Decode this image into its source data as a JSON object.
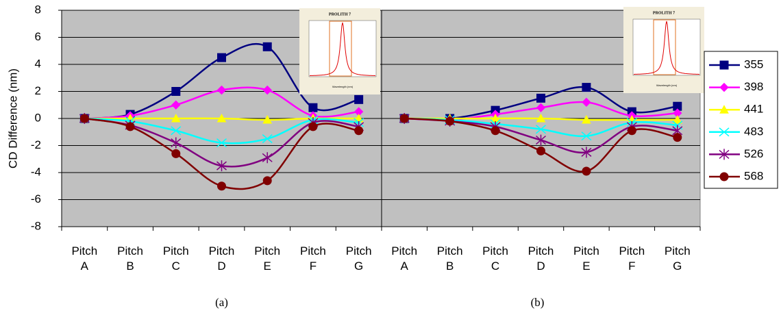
{
  "chart_data": [
    {
      "type": "line",
      "caption": "(a)",
      "y_label": "CD Difference (nm)",
      "inset_title": "PROLITH 7",
      "inset_xlabel": "Wavelength (nm)",
      "categories": [
        "Pitch A",
        "Pitch B",
        "Pitch C",
        "Pitch D",
        "Pitch E",
        "Pitch F",
        "Pitch G"
      ],
      "ylim": [
        -8,
        8
      ],
      "yticks": [
        -8,
        -6,
        -4,
        -2,
        0,
        2,
        4,
        6,
        8
      ],
      "grid": true,
      "legend": "right",
      "series": [
        {
          "name": "355",
          "color": "#000080",
          "marker": "square",
          "values": [
            0,
            0.3,
            2.0,
            4.5,
            5.3,
            0.8,
            1.4
          ]
        },
        {
          "name": "398",
          "color": "#ff00ff",
          "marker": "diamond",
          "values": [
            0,
            0.2,
            1.0,
            2.1,
            2.1,
            0.2,
            0.5
          ]
        },
        {
          "name": "441",
          "color": "#ffff00",
          "marker": "triangle",
          "values": [
            0,
            0,
            0,
            0,
            -0.1,
            0,
            0
          ]
        },
        {
          "name": "483",
          "color": "#00ffff",
          "marker": "x",
          "values": [
            0,
            -0.2,
            -0.9,
            -1.8,
            -1.5,
            -0.1,
            -0.3
          ]
        },
        {
          "name": "526",
          "color": "#800080",
          "marker": "star",
          "values": [
            0,
            -0.5,
            -1.8,
            -3.5,
            -2.9,
            -0.3,
            -0.6
          ]
        },
        {
          "name": "568",
          "color": "#800000",
          "marker": "circle",
          "values": [
            0,
            -0.6,
            -2.6,
            -5.0,
            -4.6,
            -0.6,
            -0.9
          ]
        }
      ]
    },
    {
      "type": "line",
      "caption": "(b)",
      "inset_title": "PROLITH 7",
      "inset_xlabel": "Wavelength (nm)",
      "categories": [
        "Pitch A",
        "Pitch B",
        "Pitch C",
        "Pitch D",
        "Pitch E",
        "Pitch F",
        "Pitch G"
      ],
      "ylim": [
        -8,
        8
      ],
      "yticks": [
        -8,
        -6,
        -4,
        -2,
        0,
        2,
        4,
        6,
        8
      ],
      "grid": true,
      "series": [
        {
          "color": "#000080",
          "marker": "square",
          "values": [
            0,
            0,
            0.6,
            1.5,
            2.3,
            0.5,
            0.9
          ]
        },
        {
          "color": "#ff00ff",
          "marker": "diamond",
          "values": [
            0,
            -0.1,
            0.3,
            0.8,
            1.2,
            0.2,
            0.4
          ]
        },
        {
          "color": "#ffff00",
          "marker": "triangle",
          "values": [
            0,
            0,
            0,
            0,
            -0.1,
            -0.1,
            -0.1
          ]
        },
        {
          "color": "#00ffff",
          "marker": "x",
          "values": [
            0,
            -0.1,
            -0.4,
            -0.8,
            -1.3,
            -0.3,
            -0.5
          ]
        },
        {
          "color": "#800080",
          "marker": "star",
          "values": [
            0,
            -0.2,
            -0.6,
            -1.6,
            -2.5,
            -0.6,
            -0.9
          ]
        },
        {
          "color": "#800000",
          "marker": "circle",
          "values": [
            0,
            -0.2,
            -0.9,
            -2.4,
            -3.9,
            -0.9,
            -1.4
          ]
        }
      ]
    }
  ]
}
